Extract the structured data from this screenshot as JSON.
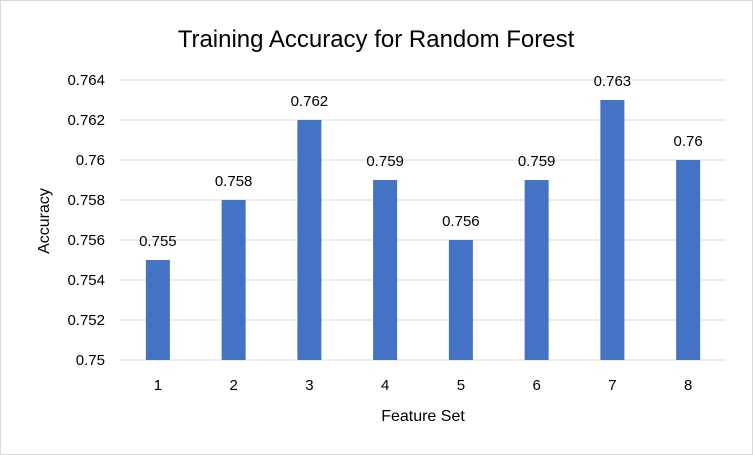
{
  "chart_data": {
    "type": "bar",
    "title": "Training Accuracy for Random Forest",
    "xlabel": "Feature Set",
    "ylabel": "Accuracy",
    "categories": [
      "1",
      "2",
      "3",
      "4",
      "5",
      "6",
      "7",
      "8"
    ],
    "values": [
      0.755,
      0.758,
      0.762,
      0.759,
      0.756,
      0.759,
      0.763,
      0.76
    ],
    "data_labels": [
      "0.755",
      "0.758",
      "0.762",
      "0.759",
      "0.756",
      "0.759",
      "0.763",
      "0.76"
    ],
    "ylim": [
      0.75,
      0.764
    ],
    "y_ticks": [
      "0.75",
      "0.752",
      "0.754",
      "0.756",
      "0.758",
      "0.76",
      "0.762",
      "0.764"
    ],
    "grid": true,
    "legend": "none",
    "colors": {
      "bar": "#4472c4",
      "grid": "#d9d9d9",
      "axis": "#d9d9d9"
    }
  }
}
